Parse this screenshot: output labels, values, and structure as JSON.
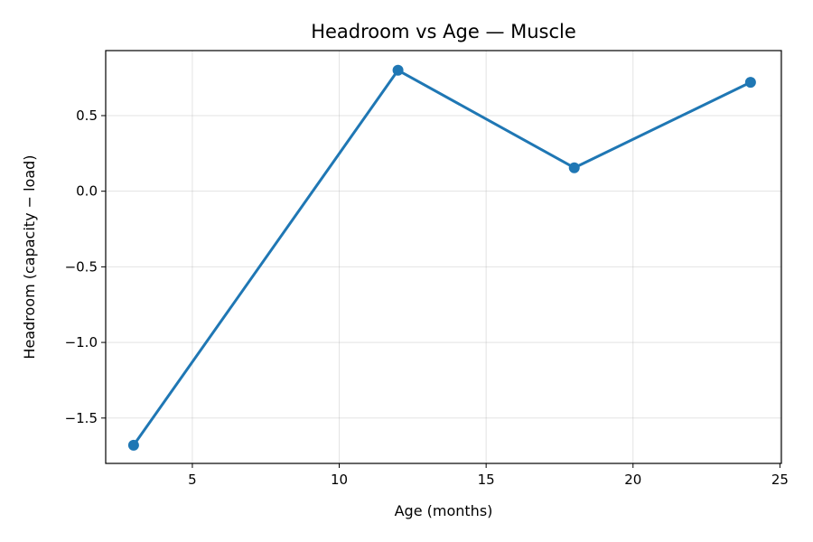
{
  "chart_data": {
    "type": "line",
    "title": "Headroom vs Age — Muscle",
    "xlabel": "Age (months)",
    "ylabel": "Headroom (capacity − load)",
    "x": [
      3,
      12,
      18,
      24
    ],
    "series": [
      {
        "values": [
          -1.68,
          0.8,
          0.155,
          0.72
        ],
        "color": "#1f77b4"
      }
    ],
    "xlim": [
      2.05,
      25.05
    ],
    "ylim": [
      -1.8,
      0.93
    ],
    "xticks": [
      5,
      10,
      15,
      20,
      25
    ],
    "xtick_labels": [
      "5",
      "10",
      "15",
      "20",
      "25"
    ],
    "yticks": [
      -1.5,
      -1.0,
      -0.5,
      0.0,
      0.5
    ],
    "ytick_labels": [
      "−1.5",
      "−1.0",
      "−0.5",
      "0.0",
      "0.5"
    ],
    "grid": true
  }
}
